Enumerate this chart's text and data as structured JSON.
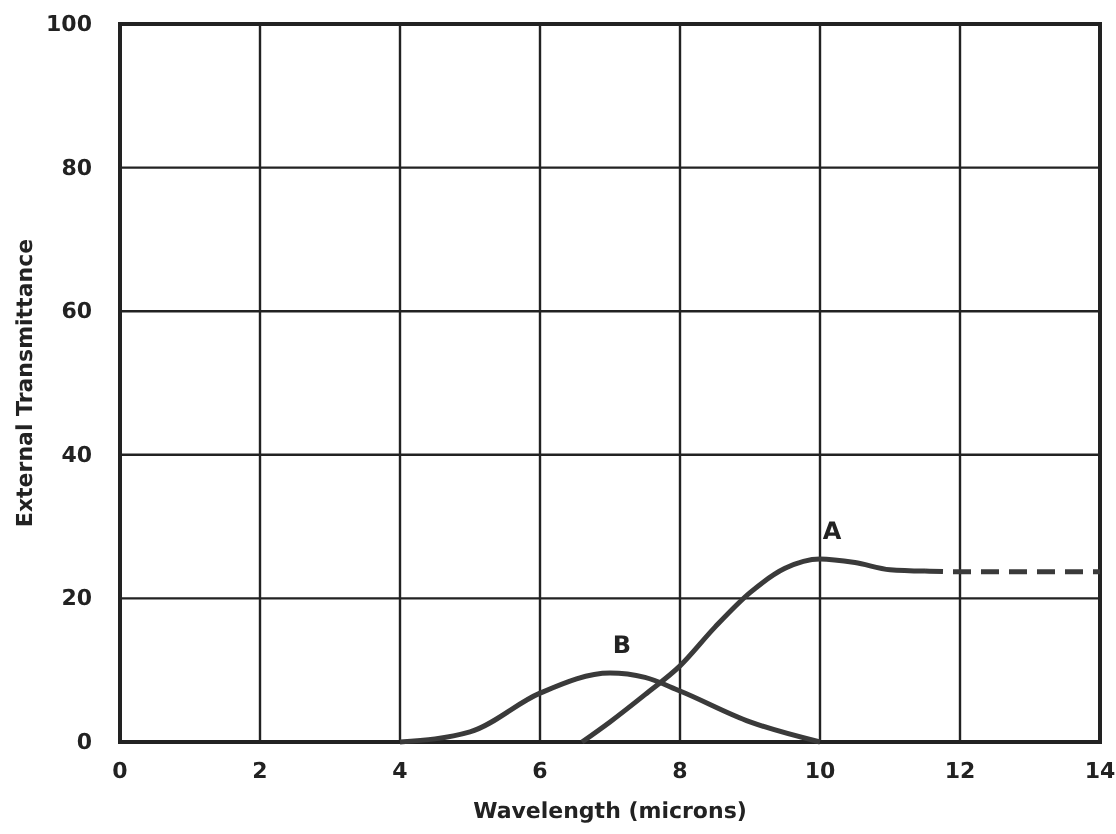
{
  "chart_data": {
    "type": "line",
    "xlabel": "Wavelength (microns)",
    "ylabel": "External Transmittance",
    "xlim": [
      0,
      14
    ],
    "ylim": [
      0,
      100
    ],
    "xticks": [
      0,
      2,
      4,
      6,
      8,
      10,
      12,
      14
    ],
    "yticks": [
      0,
      20,
      40,
      60,
      80,
      100
    ],
    "grid": true,
    "marker": "none",
    "line_style": "solid",
    "series": [
      {
        "name": "A",
        "color": "#3a3a3a",
        "x": [
          6.6,
          7,
          7.5,
          8,
          8.5,
          9,
          9.5,
          10,
          10.5,
          11,
          11.5
        ],
        "values": [
          0,
          2.8,
          6.6,
          10.6,
          16,
          20.8,
          24.2,
          25.5,
          25,
          24,
          23.8
        ]
      },
      {
        "color": "#3a3a3a",
        "line_style": "dashed",
        "x": [
          11.5,
          12,
          13,
          14
        ],
        "values": [
          23.8,
          23.7,
          23.7,
          23.7
        ]
      },
      {
        "name": "B",
        "color": "#3a3a3a",
        "x": [
          4,
          5,
          6,
          7,
          7.5,
          8,
          9,
          10
        ],
        "values": [
          0,
          1.4,
          6.8,
          9.6,
          9,
          7.1,
          2.8,
          0
        ]
      }
    ]
  }
}
